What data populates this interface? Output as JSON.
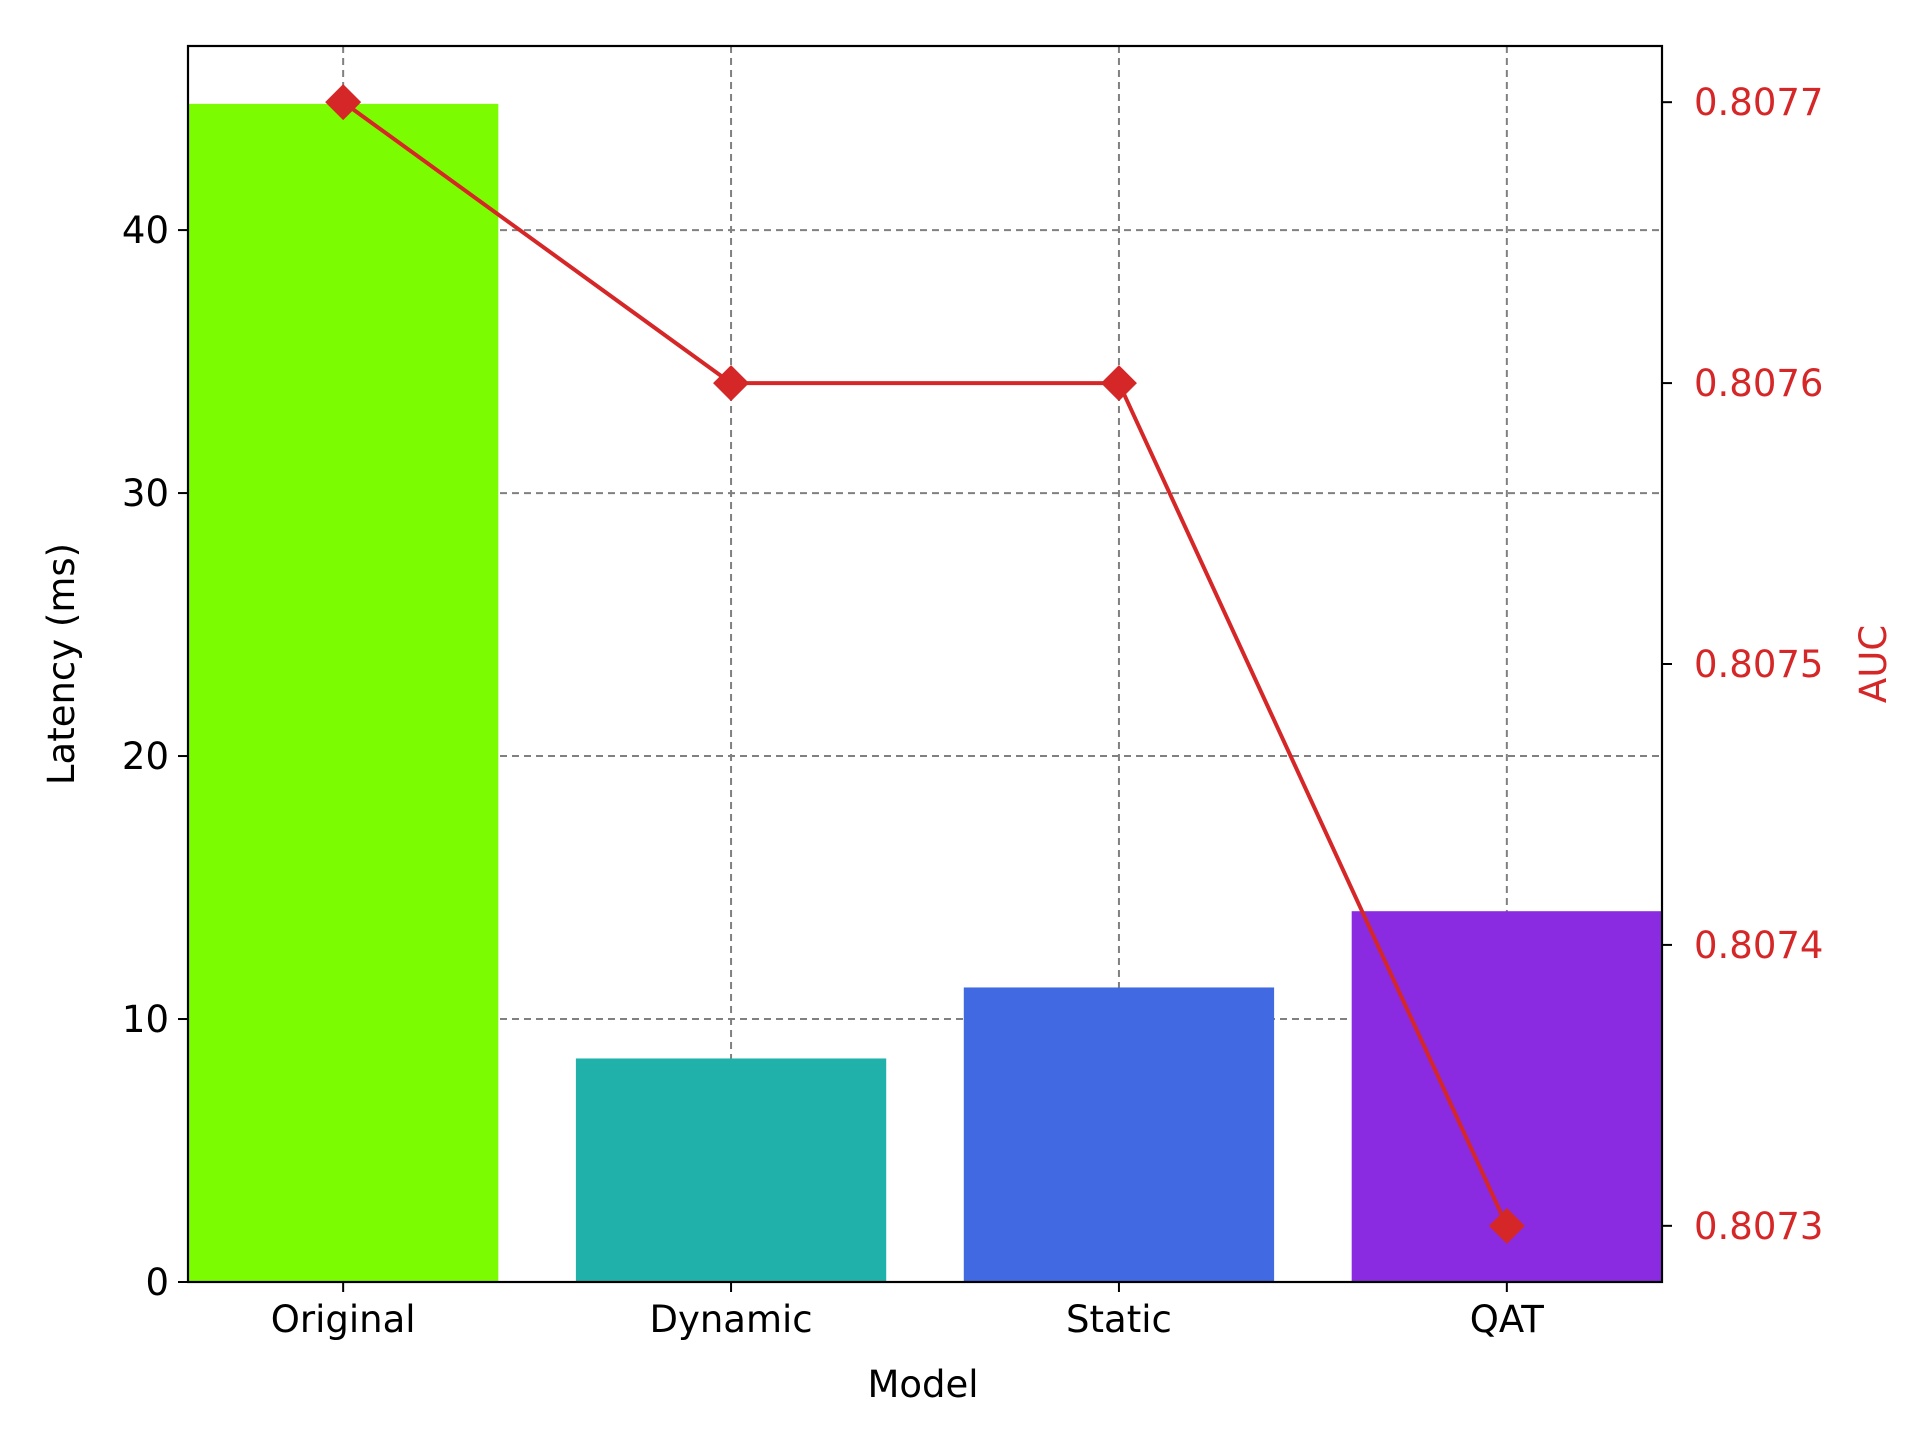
{
  "chart_data": {
    "type": "bar",
    "xlabel": "Model",
    "ylabel": "Latency (ms)",
    "y2label": "AUC",
    "categories": [
      "Original",
      "Dynamic",
      "Static",
      "QAT"
    ],
    "ylim": [
      0,
      47
    ],
    "yticks": [
      0,
      10,
      20,
      30,
      40
    ],
    "y2lim": [
      0.80728,
      0.80772
    ],
    "y2ticks": [
      "0.8073",
      "0.8074",
      "0.8075",
      "0.8076",
      "0.8077"
    ],
    "grid": true,
    "series": [
      {
        "type": "bar",
        "values": [
          44.8,
          8.5,
          11.2,
          14.1
        ],
        "colors": [
          "#7cfc00",
          "#20b2aa",
          "#4169e1",
          "#8a2be2"
        ],
        "axis": "left"
      },
      {
        "type": "line",
        "marker": "diamond",
        "values": [
          0.8077,
          0.8076,
          0.8076,
          0.8073
        ],
        "color": "#d62728",
        "axis": "right"
      }
    ]
  }
}
